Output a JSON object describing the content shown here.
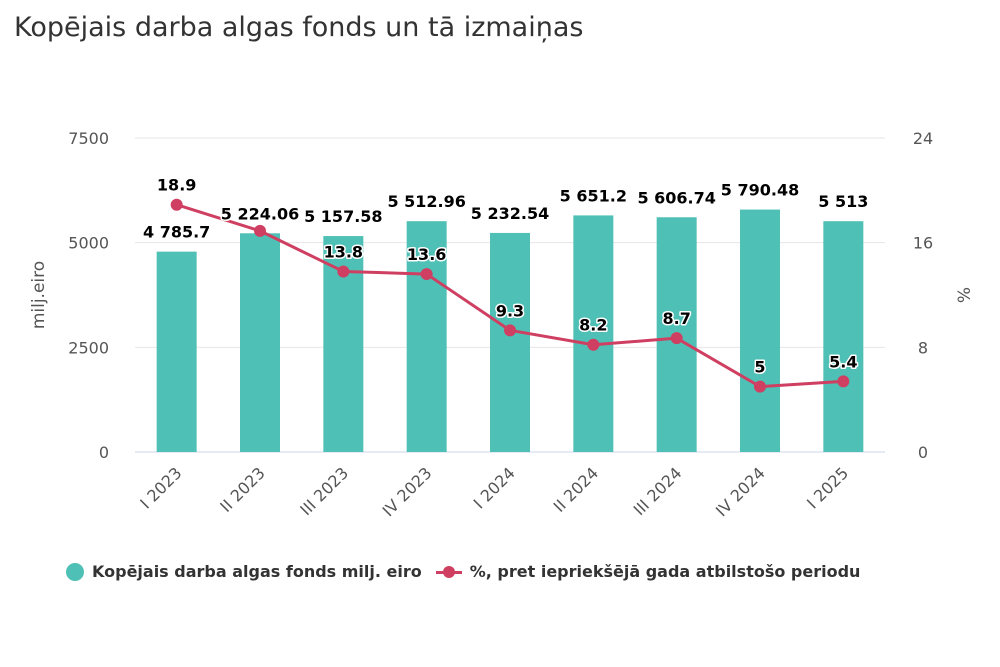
{
  "title": "Kopējais darba algas fonds un tā izmaiņas",
  "colors": {
    "bar": "#4fc0b5",
    "line": "#cf3f61",
    "grid": "#e6e6e6",
    "axis": "#ccd6eb"
  },
  "legend": {
    "bar_label": "Kopējais darba algas fonds milj. eiro",
    "line_label": "%, pret iepriekšējā gada atbilstošo periodu"
  },
  "chart_data": {
    "type": "bar",
    "categories": [
      "I 2023",
      "II 2023",
      "III 2023",
      "IV 2023",
      "I 2024",
      "II 2024",
      "III 2024",
      "IV 2024",
      "I 2025"
    ],
    "series": [
      {
        "name": "Kopējais darba algas fonds milj. eiro",
        "type": "bar",
        "axis": "left",
        "values": [
          4785.7,
          5224.06,
          5157.58,
          5512.96,
          5232.54,
          5651.2,
          5606.74,
          5790.48,
          5513
        ],
        "labels": [
          "4 785.7",
          "5 224.06",
          "5 157.58",
          "5 512.96",
          "5 232.54",
          "5 651.2",
          "5 606.74",
          "5 790.48",
          "5 513"
        ]
      },
      {
        "name": "%, pret iepriekšējā gada atbilstošo periodu",
        "type": "line",
        "axis": "right",
        "values": [
          18.9,
          16.9,
          13.8,
          13.6,
          9.3,
          8.2,
          8.7,
          5,
          5.4
        ],
        "labels": [
          "18.9",
          "",
          "13.8",
          "13.6",
          "9.3",
          "8.2",
          "8.7",
          "5",
          "5.4"
        ]
      }
    ],
    "ylabel": "milj.eiro",
    "ylabel_right": "%",
    "ylim": [
      0,
      7500
    ],
    "ylim_right": [
      0,
      24
    ],
    "yticks": [
      "0",
      "2500",
      "5000",
      "7500"
    ],
    "yticks_right": [
      "0",
      "8",
      "16",
      "24"
    ],
    "grid": true,
    "legend_position": "bottom"
  }
}
